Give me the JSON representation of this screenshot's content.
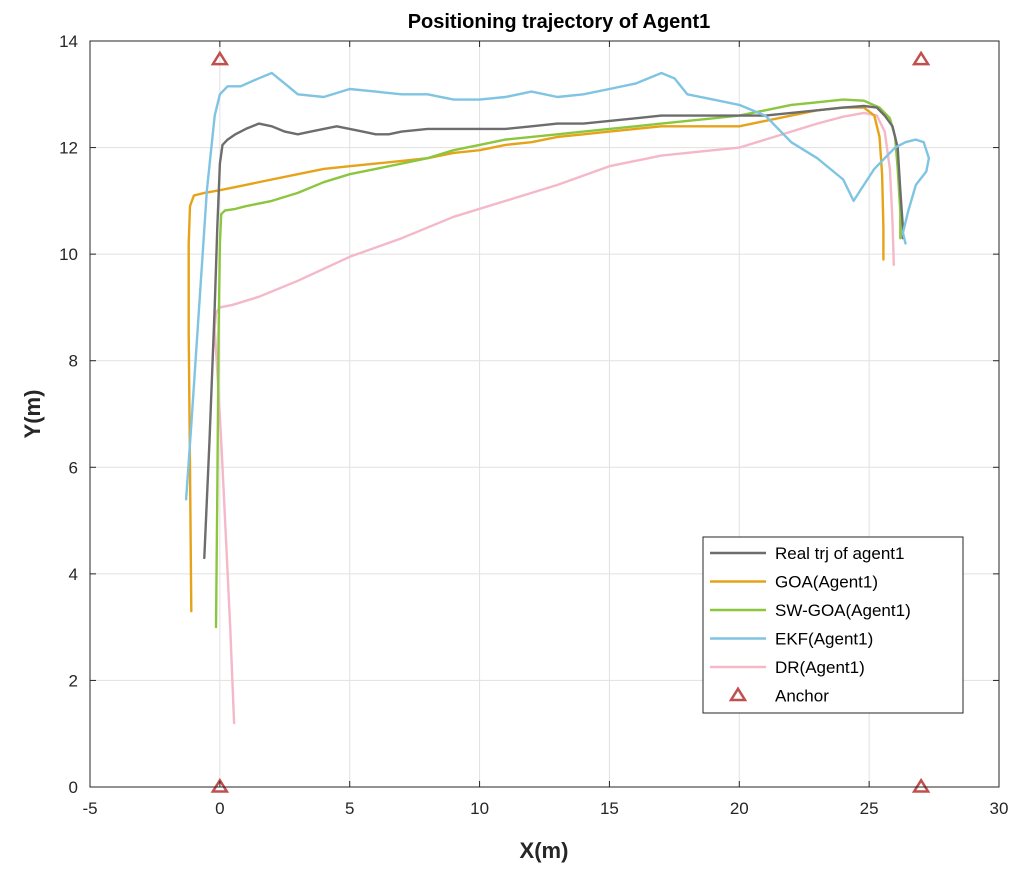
{
  "chart_data": {
    "type": "line",
    "title": "Positioning trajectory of Agent1",
    "xlabel": "X(m)",
    "ylabel": "Y(m)",
    "xlim": [
      -5,
      30
    ],
    "ylim": [
      0,
      14
    ],
    "xticks": [
      -5,
      0,
      5,
      10,
      15,
      20,
      25,
      30
    ],
    "yticks": [
      0,
      2,
      4,
      6,
      8,
      10,
      12,
      14
    ],
    "grid": true,
    "legend_position": "bottom-right",
    "colors": {
      "real": "#6d6d6d",
      "goa": "#e6a31a",
      "swgoa": "#8cc63f",
      "ekf": "#7fc4e2",
      "dr": "#f4b8c8",
      "anchor": "#c0504d"
    },
    "series": [
      {
        "name": "Real trj of agent1",
        "color": "#6d6d6d",
        "x": [
          -0.6,
          -0.4,
          -0.2,
          -0.1,
          0.0,
          0.1,
          0.3,
          0.6,
          1.0,
          1.5,
          2.0,
          2.5,
          3.0,
          3.5,
          4.0,
          4.5,
          5.0,
          5.5,
          6.0,
          6.5,
          7.0,
          8.0,
          9.0,
          10.0,
          11.0,
          12.0,
          13.0,
          14.0,
          15.0,
          16.0,
          17.0,
          18.0,
          19.0,
          20.0,
          21.0,
          22.0,
          23.0,
          24.0,
          24.8,
          25.3,
          25.6,
          25.9,
          26.1,
          26.2,
          26.3,
          26.3
        ],
        "y": [
          4.3,
          6.5,
          9.0,
          10.5,
          11.7,
          12.05,
          12.15,
          12.25,
          12.35,
          12.45,
          12.4,
          12.3,
          12.25,
          12.3,
          12.35,
          12.4,
          12.35,
          12.3,
          12.25,
          12.25,
          12.3,
          12.35,
          12.35,
          12.35,
          12.35,
          12.4,
          12.45,
          12.45,
          12.5,
          12.55,
          12.6,
          12.6,
          12.6,
          12.6,
          12.6,
          12.65,
          12.7,
          12.75,
          12.78,
          12.75,
          12.6,
          12.4,
          12.0,
          11.2,
          10.5,
          10.3
        ]
      },
      {
        "name": "GOA(Agent1)",
        "color": "#e6a31a",
        "x": [
          -1.1,
          -1.15,
          -1.2,
          -1.2,
          -1.15,
          -1.0,
          -0.6,
          0.0,
          1.0,
          2.0,
          3.0,
          4.0,
          5.0,
          6.0,
          7.0,
          8.0,
          9.0,
          10.0,
          11.0,
          12.0,
          13.0,
          14.0,
          15.0,
          16.0,
          17.0,
          18.0,
          19.0,
          20.0,
          21.0,
          22.0,
          23.0,
          24.0,
          24.8,
          25.2,
          25.4,
          25.5,
          25.55,
          25.55
        ],
        "y": [
          3.3,
          6.0,
          8.5,
          10.2,
          10.9,
          11.1,
          11.15,
          11.2,
          11.3,
          11.4,
          11.5,
          11.6,
          11.65,
          11.7,
          11.75,
          11.8,
          11.9,
          11.95,
          12.05,
          12.1,
          12.2,
          12.25,
          12.3,
          12.35,
          12.4,
          12.4,
          12.4,
          12.4,
          12.5,
          12.6,
          12.7,
          12.75,
          12.75,
          12.6,
          12.2,
          11.5,
          10.5,
          9.9
        ]
      },
      {
        "name": "SW-GOA(Agent1)",
        "color": "#8cc63f",
        "x": [
          -0.15,
          -0.1,
          -0.05,
          0.0,
          0.05,
          0.2,
          0.6,
          1.0,
          2.0,
          3.0,
          4.0,
          5.0,
          6.0,
          7.0,
          8.0,
          9.0,
          10.0,
          11.0,
          12.0,
          13.0,
          14.0,
          15.0,
          16.0,
          17.0,
          18.0,
          19.0,
          20.0,
          21.0,
          22.0,
          23.0,
          24.0,
          24.8,
          25.4,
          25.8,
          26.0,
          26.1,
          26.2,
          26.2
        ],
        "y": [
          3.0,
          5.5,
          8.5,
          10.2,
          10.75,
          10.82,
          10.85,
          10.9,
          11.0,
          11.15,
          11.35,
          11.5,
          11.6,
          11.7,
          11.8,
          11.95,
          12.05,
          12.15,
          12.2,
          12.25,
          12.3,
          12.35,
          12.4,
          12.45,
          12.5,
          12.55,
          12.6,
          12.7,
          12.8,
          12.85,
          12.9,
          12.88,
          12.75,
          12.55,
          12.2,
          11.6,
          10.8,
          10.3
        ]
      },
      {
        "name": "EKF(Agent1)",
        "color": "#7fc4e2",
        "x": [
          -1.3,
          -1.1,
          -0.8,
          -0.5,
          -0.2,
          0.0,
          0.3,
          0.8,
          1.5,
          2.0,
          2.5,
          3.0,
          4.0,
          5.0,
          6.0,
          7.0,
          8.0,
          9.0,
          10.0,
          11.0,
          12.0,
          13.0,
          14.0,
          15.0,
          16.0,
          17.0,
          17.5,
          18.0,
          19.0,
          20.0,
          21.0,
          22.0,
          23.0,
          24.0,
          24.4,
          24.8,
          25.2,
          25.6,
          26.0,
          26.4,
          26.8,
          27.1,
          27.3,
          27.2,
          26.8,
          26.5,
          26.3,
          26.4
        ],
        "y": [
          5.4,
          6.8,
          9.0,
          11.2,
          12.6,
          13.0,
          13.15,
          13.15,
          13.3,
          13.4,
          13.2,
          13.0,
          12.95,
          13.1,
          13.05,
          13.0,
          13.0,
          12.9,
          12.9,
          12.95,
          13.05,
          12.95,
          13.0,
          13.1,
          13.2,
          13.4,
          13.3,
          13.0,
          12.9,
          12.8,
          12.6,
          12.1,
          11.8,
          11.4,
          11.0,
          11.3,
          11.6,
          11.8,
          12.0,
          12.1,
          12.15,
          12.1,
          11.8,
          11.55,
          11.3,
          10.8,
          10.4,
          10.2
        ]
      },
      {
        "name": "DR(Agent1)",
        "color": "#f4b8c8",
        "x": [
          0.55,
          0.4,
          0.2,
          0.05,
          -0.1,
          -0.2,
          -0.15,
          0.0,
          0.5,
          1.5,
          3.0,
          5.0,
          7.0,
          9.0,
          11.0,
          13.0,
          15.0,
          17.0,
          19.0,
          20.0,
          21.0,
          22.0,
          23.0,
          24.0,
          24.8,
          25.3,
          25.6,
          25.8,
          25.9,
          25.95
        ],
        "y": [
          1.2,
          3.0,
          5.0,
          6.5,
          7.8,
          8.6,
          8.9,
          9.0,
          9.05,
          9.2,
          9.5,
          9.95,
          10.3,
          10.7,
          11.0,
          11.3,
          11.65,
          11.85,
          11.95,
          12.0,
          12.15,
          12.3,
          12.45,
          12.58,
          12.65,
          12.6,
          12.3,
          11.6,
          10.6,
          9.8
        ]
      }
    ],
    "anchors": {
      "name": "Anchor",
      "color": "#c0504d",
      "points": [
        [
          0,
          13.65
        ],
        [
          27,
          13.65
        ],
        [
          0,
          0
        ],
        [
          27,
          0
        ]
      ]
    }
  }
}
